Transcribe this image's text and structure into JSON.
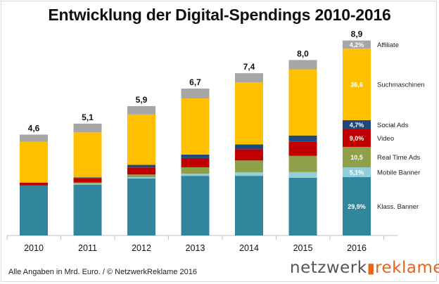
{
  "chart_data": {
    "type": "bar",
    "stacked": true,
    "title": "Entwicklung der Digital-Spendings 2010-2016",
    "unit_note": "Alle Angaben in Mrd. Euro. / © NetzwerkReklame 2016",
    "categories": [
      "2010",
      "2011",
      "2012",
      "2013",
      "2014",
      "2015",
      "2016"
    ],
    "totals": [
      "4,6",
      "5,1",
      "5,9",
      "6,7",
      "7,4",
      "8,0",
      "8,9"
    ],
    "total_values": [
      4.6,
      5.1,
      5.9,
      6.7,
      7.4,
      8.0,
      8.9
    ],
    "ylim": [
      0,
      9.2
    ],
    "grid": false,
    "legend": "right of last bar",
    "series": [
      {
        "name": "Klass. Banner",
        "color": "#31859c",
        "values": [
          2.28,
          2.32,
          2.6,
          2.72,
          2.72,
          2.63,
          2.66
        ],
        "label_2016": "29,9%"
      },
      {
        "name": "Mobile Banner",
        "color": "#92cddc",
        "values": [
          0,
          0.05,
          0.06,
          0.1,
          0.16,
          0.26,
          0.45
        ],
        "label_2016": "5,1%"
      },
      {
        "name": "Real Time Ads",
        "color": "#8ea04a",
        "values": [
          0,
          0.05,
          0.12,
          0.29,
          0.54,
          0.74,
          0.93
        ],
        "label_2016": "10,5"
      },
      {
        "name": "Video",
        "color": "#c00000",
        "values": [
          0.13,
          0.2,
          0.32,
          0.42,
          0.51,
          0.64,
          0.8
        ],
        "label_2016": "9,0%"
      },
      {
        "name": "Social Ads",
        "color": "#1f497d",
        "values": [
          0,
          0.03,
          0.12,
          0.16,
          0.22,
          0.29,
          0.42
        ],
        "label_2016": "4,7%"
      },
      {
        "name": "Suchmaschinen",
        "color": "#ffc000",
        "values": [
          1.87,
          2.05,
          2.3,
          2.56,
          2.83,
          3.02,
          3.26
        ],
        "label_2016": "36,6"
      },
      {
        "name": "Affiliate",
        "color": "#a6a6a6",
        "values": [
          0.32,
          0.4,
          0.38,
          0.45,
          0.42,
          0.42,
          0.37
        ],
        "label_2016": "4,2%"
      }
    ]
  },
  "logo": {
    "part1": "netzwerk",
    "part2": "reklame"
  }
}
